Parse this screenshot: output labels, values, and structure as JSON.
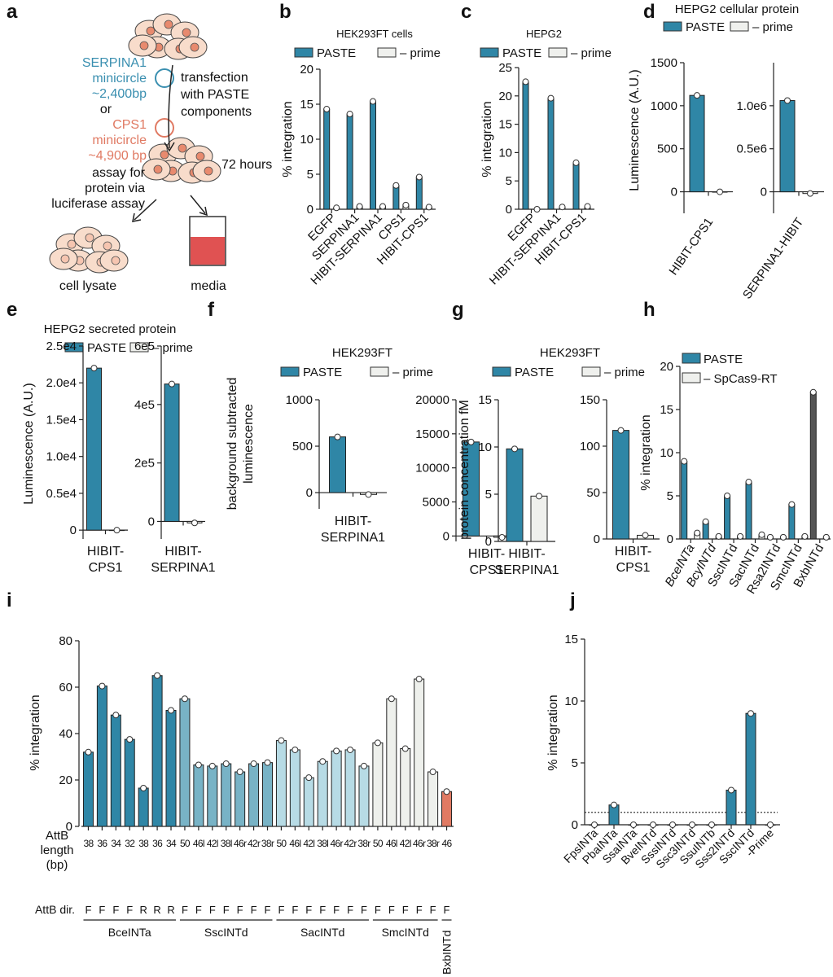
{
  "panel_labels": [
    "a",
    "b",
    "c",
    "d",
    "e",
    "f",
    "g",
    "h",
    "i",
    "j"
  ],
  "colors": {
    "paste": "#2f86a6",
    "minus": "#eff0ed",
    "bxb_h": "#555555",
    "serpina1": "#3a8fb0",
    "cps1": "#e07a63",
    "media": "#e05252",
    "cell": "#f8dccb",
    "nucleus": "#e88a6e"
  },
  "panel_a": {
    "serpina1": [
      "SERPINA1",
      "minicircle",
      "~2,400bp"
    ],
    "or": "or",
    "cps1": [
      "CPS1",
      "minicircle",
      "~4,900 bp"
    ],
    "transfection": [
      "transfection",
      "with PASTE",
      "components"
    ],
    "time": "72 hours",
    "assay": [
      "assay for",
      "protein via",
      "luciferase assay"
    ],
    "cell_lysate": "cell lysate",
    "media": "media"
  },
  "chart_data": [
    {
      "panel": "b",
      "type": "bar",
      "title": "HEK293FT cells",
      "ylabel": "% integration",
      "ylim": [
        0,
        20
      ],
      "yticks": [
        0,
        5,
        10,
        15,
        20
      ],
      "categories": [
        "EGFP",
        "SERPINA1",
        "HIBIT-SERPINA1",
        "CPS1",
        "HIBIT-CPS1"
      ],
      "series": [
        {
          "name": "PASTE",
          "values": [
            14.3,
            13.6,
            15.4,
            3.4,
            4.6
          ]
        },
        {
          "name": "– prime",
          "values": [
            0.2,
            0.4,
            0.4,
            0.6,
            0.3
          ]
        }
      ],
      "legend": "top",
      "grid": false
    },
    {
      "panel": "c",
      "type": "bar",
      "title": "HEPG2",
      "ylabel": "% integration",
      "ylim": [
        0,
        25
      ],
      "yticks": [
        0,
        5,
        10,
        15,
        20,
        25
      ],
      "categories": [
        "EGFP",
        "HIBIT-SERPINA1",
        "HIBIT-CPS1"
      ],
      "series": [
        {
          "name": "PASTE",
          "values": [
            22.5,
            19.6,
            8.2
          ]
        },
        {
          "name": "– prime",
          "values": [
            0.0,
            0.4,
            0.5
          ]
        }
      ],
      "legend": "top",
      "grid": false
    },
    {
      "panel": "d",
      "type": "bar",
      "title": "HEPG2 cellular protein",
      "ylabel": "Luminescence (A.U.)",
      "legend_names": [
        "PASTE",
        "– prime"
      ],
      "legend": "top",
      "subplots": [
        {
          "categories": [
            "HIBIT-CPS1"
          ],
          "ylim": [
            -250,
            1500
          ],
          "yticks": [
            0,
            500,
            1000,
            1500
          ],
          "ytick_labels": [
            "0",
            "500",
            "1000",
            "1500"
          ],
          "series": [
            {
              "values": [
                1120
              ]
            },
            {
              "values": [
                0
              ]
            }
          ]
        },
        {
          "categories": [
            "SERPINA1-HIBIT"
          ],
          "ylim": [
            -250000,
            1500000
          ],
          "yticks": [
            0,
            500000,
            1000000
          ],
          "ytick_labels": [
            "0",
            "0.5e6",
            "1.0e6"
          ],
          "series": [
            {
              "values": [
                1060000
              ]
            },
            {
              "values": [
                -20000
              ]
            }
          ]
        }
      ]
    },
    {
      "panel": "e",
      "type": "bar",
      "title": "HEPG2 secreted protein",
      "ylabel": "Luminescence (A.U.)",
      "legend_names": [
        "PASTE",
        "– prime"
      ],
      "legend": "top",
      "subplots": [
        {
          "categories": [
            "HIBIT-CPS1"
          ],
          "category_lines": [
            "HIBIT-",
            "CPS1"
          ],
          "ylim": [
            -1200,
            25000
          ],
          "yticks": [
            0,
            5000,
            10000,
            15000,
            20000,
            25000
          ],
          "ytick_labels": [
            "0",
            "0.5e4",
            "1.0e4",
            "1.5e4",
            "2.0e4",
            "2.5e4"
          ],
          "series": [
            {
              "values": [
                22000
              ]
            },
            {
              "values": [
                0
              ]
            }
          ]
        },
        {
          "categories": [
            "HIBIT-SERPINA1"
          ],
          "category_lines": [
            "HIBIT-",
            "SERPINA1"
          ],
          "ylim": [
            -60000,
            600000
          ],
          "yticks": [
            0,
            200000,
            400000,
            600000
          ],
          "ytick_labels": [
            "0",
            "2e5",
            "4e5",
            "6e5"
          ],
          "series": [
            {
              "values": [
                470000
              ]
            },
            {
              "values": [
                -5000
              ]
            }
          ]
        }
      ]
    },
    {
      "panel": "f",
      "type": "bar",
      "title": "HEK293FT",
      "ylabel": [
        "background subtracted",
        "luminescence"
      ],
      "legend_names": [
        "PASTE",
        "– prime"
      ],
      "legend": "top",
      "subplots": [
        {
          "categories": [
            "HIBIT-SERPINA1"
          ],
          "category_lines": [
            "HIBIT-",
            "SERPINA1"
          ],
          "ylim": [
            -175,
            1000
          ],
          "yticks": [
            0,
            500,
            1000
          ],
          "ytick_labels": [
            "0",
            "500",
            "1000"
          ],
          "series": [
            {
              "values": [
                600
              ]
            },
            {
              "values": [
                -20
              ]
            }
          ]
        },
        {
          "categories": [
            "HIBIT-CPS1"
          ],
          "category_lines": [
            "HIBIT-",
            "CPS1"
          ],
          "ylim": [
            -800,
            20000
          ],
          "yticks": [
            0,
            5000,
            10000,
            15000,
            20000
          ],
          "ytick_labels": [
            "0",
            "5000",
            "10000",
            "15000",
            "20000"
          ],
          "series": [
            {
              "values": [
                13800
              ]
            },
            {
              "values": [
                -200
              ]
            }
          ]
        }
      ]
    },
    {
      "panel": "g",
      "type": "bar",
      "title": "HEK293FT",
      "ylabel": "protein concentration fM",
      "legend_names": [
        "PASTE",
        "– prime"
      ],
      "legend": "top",
      "subplots": [
        {
          "categories": [
            "HIBIT-SERPINA1"
          ],
          "category_lines": [
            "HIBIT-",
            "SERPINA1"
          ],
          "ylim": [
            0,
            15
          ],
          "yticks": [
            0,
            5,
            10,
            15
          ],
          "ytick_labels": [
            "0",
            "5",
            "10",
            "15"
          ],
          "series": [
            {
              "values": [
                9.8
              ]
            },
            {
              "values": [
                4.8
              ]
            }
          ]
        },
        {
          "categories": [
            "HIBIT-CPS1"
          ],
          "category_lines": [
            "HIBIT-",
            "CPS1"
          ],
          "ylim": [
            0,
            150
          ],
          "yticks": [
            0,
            50,
            100,
            150
          ],
          "ytick_labels": [
            "0",
            "50",
            "100",
            "150"
          ],
          "series": [
            {
              "values": [
                117
              ]
            },
            {
              "values": [
                4
              ]
            }
          ]
        }
      ]
    },
    {
      "panel": "h",
      "type": "bar",
      "title": "",
      "ylabel": "% integration",
      "ylim": [
        0,
        20
      ],
      "yticks": [
        0,
        5,
        10,
        15,
        20
      ],
      "categories": [
        "BceINTa",
        "BcyINTd",
        "SscINTd",
        "SacINTd",
        "Rsa2INTd",
        "SmcINTd",
        "BxbINTd"
      ],
      "italic_categories": [
        "BceINTa",
        "BcyINTd"
      ],
      "series": [
        {
          "name": "PASTE",
          "values": [
            9.0,
            2.0,
            5.0,
            6.6,
            0.2,
            4.0,
            17.0
          ],
          "colors": [
            "#2f86a6",
            "#2f86a6",
            "#2f86a6",
            "#2f86a6",
            "#2f86a6",
            "#2f86a6",
            "#555555"
          ]
        },
        {
          "name": "– SpCas9-RT",
          "values": [
            0.7,
            0.3,
            0.3,
            0.5,
            0.2,
            0.3,
            0.2
          ]
        }
      ],
      "legend": "top-left",
      "grid": false
    },
    {
      "panel": "i",
      "type": "bar",
      "title": "",
      "ylabel": "% integration",
      "ylim": [
        0,
        80
      ],
      "yticks": [
        0,
        20,
        40,
        60,
        80
      ],
      "xlabel": [
        "AttB",
        "length",
        "(bp)"
      ],
      "dir_label": "AttB dir.",
      "categories": [
        "38",
        "36",
        "34",
        "32",
        "38",
        "36",
        "34",
        "50",
        "46l",
        "42l",
        "38l",
        "46r",
        "42r",
        "38r",
        "50",
        "46l",
        "42l",
        "38l",
        "46r",
        "42r",
        "38r",
        "50",
        "46l",
        "42l",
        "46r",
        "38r",
        "46"
      ],
      "directions": [
        "F",
        "F",
        "F",
        "F",
        "R",
        "R",
        "R",
        "F",
        "F",
        "F",
        "F",
        "F",
        "F",
        "F",
        "F",
        "F",
        "F",
        "F",
        "F",
        "F",
        "F",
        "F",
        "F",
        "F",
        "F",
        "F",
        "F"
      ],
      "values": [
        32,
        60.5,
        48,
        37.5,
        16.5,
        65,
        50,
        55,
        26.5,
        26,
        27,
        23.5,
        27,
        27.5,
        37,
        33,
        21,
        28,
        32.5,
        33,
        26,
        36,
        55,
        33.5,
        63.5,
        23.5,
        15
      ],
      "groups": [
        {
          "name": "BceINTa",
          "count": 7,
          "color": "#2f86a6"
        },
        {
          "name": "SscINTd",
          "count": 7,
          "color": "#78b3c6"
        },
        {
          "name": "SacINTd",
          "count": 7,
          "color": "#b7dbe5"
        },
        {
          "name": "SmcINTd",
          "count": 5,
          "color": "#eef0ec"
        },
        {
          "name": "BxbINTd",
          "count": 1,
          "color": "#e07a63"
        }
      ],
      "grid": false
    },
    {
      "panel": "j",
      "type": "bar",
      "title": "",
      "ylabel": "% integration",
      "ylim": [
        0,
        15
      ],
      "yticks": [
        0,
        5,
        10,
        15
      ],
      "categories": [
        "FpsINTa",
        "PbaINTa",
        "SsaINTa",
        "BveINTd",
        "SssINTd",
        "Ssc3INTd",
        "SsuINTb",
        "Sss2INTd",
        "SscINTd",
        "-Prime"
      ],
      "values": [
        0.0,
        1.6,
        0.0,
        0.0,
        0.0,
        0.0,
        0.0,
        2.8,
        9.0,
        0.0
      ],
      "threshold": 1,
      "grid": false
    }
  ]
}
